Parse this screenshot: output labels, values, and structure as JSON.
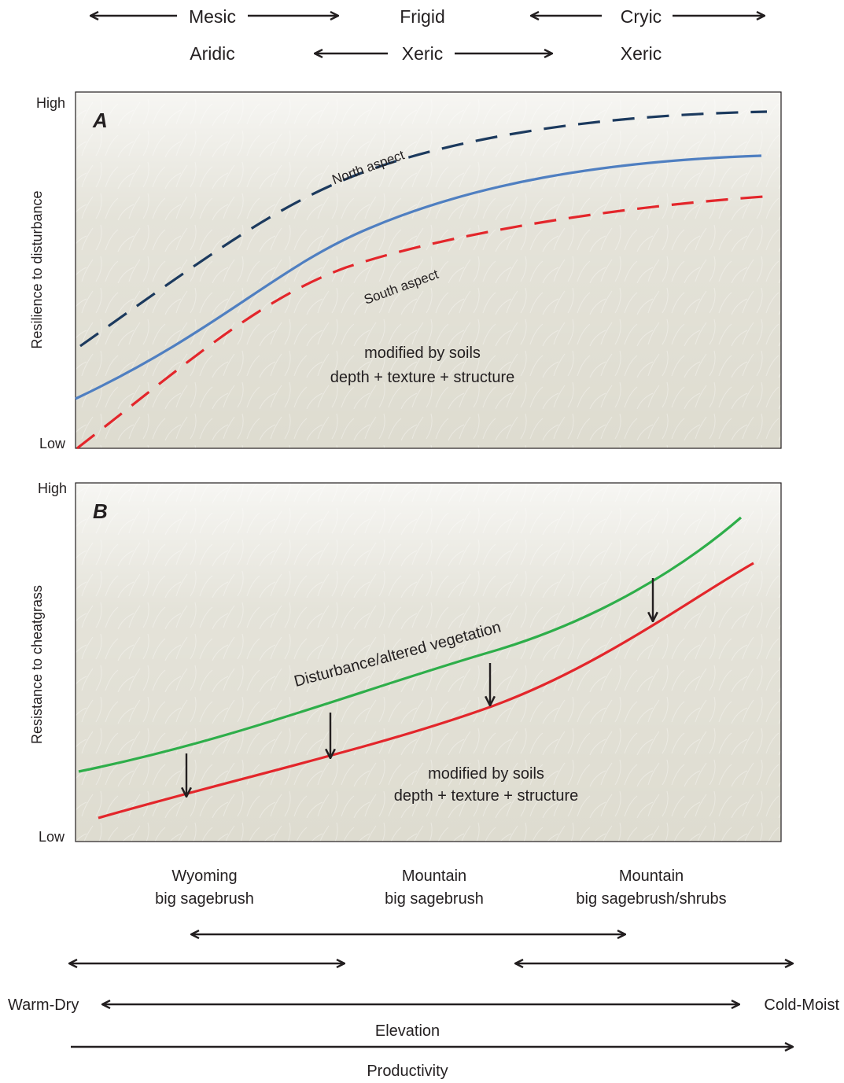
{
  "regimes": {
    "temperature": [
      "Mesic",
      "Frigid",
      "Cryic"
    ],
    "moisture": [
      "Aridic",
      "Xeric",
      "Xeric"
    ]
  },
  "panel_a": {
    "letter": "A",
    "y_label": "Resilience to disturbance",
    "y_high": "High",
    "y_low": "Low",
    "north_label": "North aspect",
    "south_label": "South aspect",
    "soils_line1": "modified by soils",
    "soils_line2": "depth + texture + structure",
    "colors": {
      "north": "#1c3a5e",
      "mid": "#4f7fc1",
      "south": "#e3262b",
      "background": "#dedcd0"
    }
  },
  "panel_b": {
    "letter": "B",
    "y_label": "Resistance to cheatgrass",
    "y_high": "High",
    "y_low": "Low",
    "curve_label": "Disturbance/altered vegetation",
    "soils_line1": "modified by soils",
    "soils_line2": "depth + texture + structure",
    "colors": {
      "upper": "#2eae4a",
      "lower": "#e3262b",
      "background": "#dedcd0"
    }
  },
  "vegetation": [
    {
      "line1": "Wyoming",
      "line2": "big sagebrush"
    },
    {
      "line1": "Mountain",
      "line2": "big sagebrush"
    },
    {
      "line1": "Mountain",
      "line2": "big sagebrush/shrubs"
    }
  ],
  "gradient": {
    "left": "Warm-Dry",
    "right": "Cold-Moist",
    "elevation": "Elevation",
    "productivity": "Productivity"
  }
}
